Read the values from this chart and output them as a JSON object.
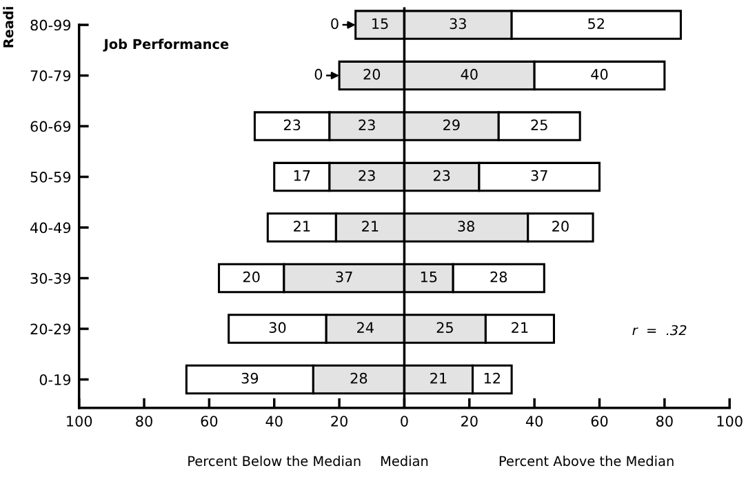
{
  "chart_data": {
    "type": "bar",
    "orientation": "horizontal",
    "ylabel": "Readi",
    "categories": [
      "80-99",
      "70-79",
      "60-69",
      "50-59",
      "40-49",
      "30-39",
      "20-29",
      "0-19"
    ],
    "series": [
      {
        "color": "#ffffff",
        "values": [
          0,
          0,
          23,
          17,
          21,
          20,
          30,
          39
        ],
        "base": [
          -15,
          -20,
          -46,
          -40,
          -42,
          -57,
          -54,
          -67
        ]
      },
      {
        "color": "#e3e3e3",
        "values": [
          15,
          20,
          23,
          23,
          21,
          37,
          24,
          28
        ],
        "base": [
          -15,
          -20,
          -23,
          -23,
          -21,
          -37,
          -24,
          -28
        ]
      },
      {
        "color": "#e3e3e3",
        "values": [
          33,
          40,
          29,
          23,
          38,
          15,
          25,
          21
        ],
        "base": [
          0,
          0,
          0,
          0,
          0,
          0,
          0,
          0
        ]
      },
      {
        "color": "#ffffff",
        "values": [
          52,
          40,
          25,
          37,
          20,
          28,
          21,
          12
        ],
        "base": [
          33,
          40,
          29,
          23,
          38,
          15,
          25,
          21
        ]
      }
    ],
    "data_labels": true,
    "xlim": [
      -100,
      100
    ],
    "xticks": [
      {
        "value": -100,
        "label": "100"
      },
      {
        "value": -80,
        "label": "80"
      },
      {
        "value": -60,
        "label": "60"
      },
      {
        "value": -40,
        "label": "40"
      },
      {
        "value": -20,
        "label": "20"
      },
      0,
      20,
      40,
      60,
      80,
      100
    ],
    "ref_lines": [
      {
        "axis": "x",
        "value": 0,
        "label": "Median"
      }
    ],
    "annotations": [
      "Job Performance",
      "r  =  .32",
      "Percent Below the Median",
      "Percent Above the Median"
    ],
    "grid": false,
    "legend": false
  }
}
